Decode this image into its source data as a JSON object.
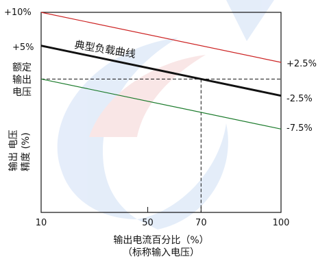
{
  "chart_data": {
    "type": "line",
    "title": "",
    "xlabel": "输出电流百分比（%）",
    "xlabel_sub": "（标称输入电压）",
    "ylabel_left_top": [
      "额定",
      "输出",
      "电压"
    ],
    "ylabel_left_bottom": [
      "输出 电压",
      "精度 (%)"
    ],
    "x_ticks": [
      "10",
      "50",
      "70",
      "100"
    ],
    "x_range": [
      10,
      100
    ],
    "y_range": [
      -20,
      10
    ],
    "y_ticks_left": [
      "+10%",
      "+5%"
    ],
    "y_ticks_right": [
      "+2.5%",
      "-2.5%",
      "-7.5%"
    ],
    "annotation": "典型负载曲线",
    "series": [
      {
        "name": "",
        "color": "#cc2222",
        "x": [
          10,
          100
        ],
        "y": [
          10,
          2.5
        ]
      },
      {
        "name": "典型负载曲线",
        "color": "#111111",
        "x": [
          10,
          100
        ],
        "y": [
          5,
          -2.5
        ]
      },
      {
        "name": "",
        "color": "#1a7a2a",
        "x": [
          10,
          100
        ],
        "y": [
          0,
          -7.5
        ]
      }
    ],
    "reference_lines": {
      "horizontal_y": 0,
      "vertical_x": 70
    },
    "grid": false,
    "watermark_colors": [
      "#d9e6f7",
      "#f7dede"
    ]
  }
}
